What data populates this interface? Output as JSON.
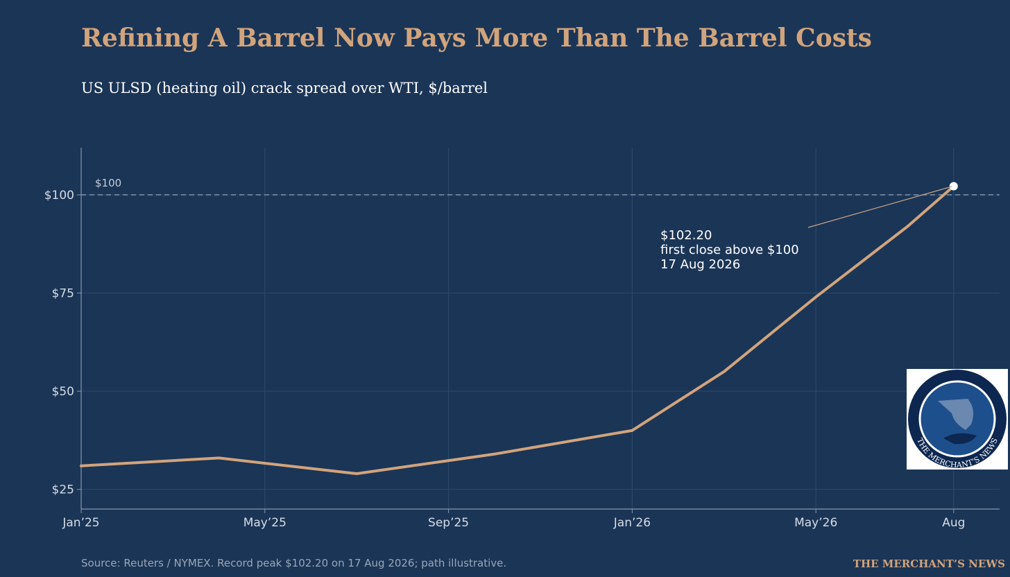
{
  "chart_data": {
    "type": "line",
    "title": "Refining A Barrel Now Pays More Than The Barrel Costs",
    "subtitle": "US ULSD (heating oil) crack spread over WTI, $/barrel",
    "x": [
      0,
      3,
      6,
      9,
      12,
      14,
      16,
      18,
      19
    ],
    "values": [
      31,
      33,
      29,
      34,
      40,
      55,
      74,
      92,
      102.2
    ],
    "color": "#d2a47c",
    "xlim": [
      0,
      20
    ],
    "xticks": [
      {
        "value": 0,
        "label": "Jan’25"
      },
      {
        "value": 4,
        "label": "May’25"
      },
      {
        "value": 8,
        "label": "Sep’25"
      },
      {
        "value": 12,
        "label": "Jan’26"
      },
      {
        "value": 16,
        "label": "May’26"
      },
      {
        "value": 19,
        "label": "Aug"
      }
    ],
    "ylim": [
      20,
      112
    ],
    "yticks": [
      {
        "value": 25,
        "label": "$25"
      },
      {
        "value": 50,
        "label": "$50"
      },
      {
        "value": 75,
        "label": "$75"
      },
      {
        "value": 100,
        "label": "$100"
      }
    ],
    "grid": true,
    "reference_line": {
      "value": 100,
      "label": "$100"
    },
    "annotation": [
      "$102.20",
      "first close above $100",
      "17 Aug 2026"
    ],
    "source": "Source: Reuters / NYMEX. Record peak $102.20 on 17 Aug 2026; path illustrative.",
    "brand": "THE MERCHANT’S NEWS",
    "logo_text": "THE MERCHANT’S NEWS"
  }
}
